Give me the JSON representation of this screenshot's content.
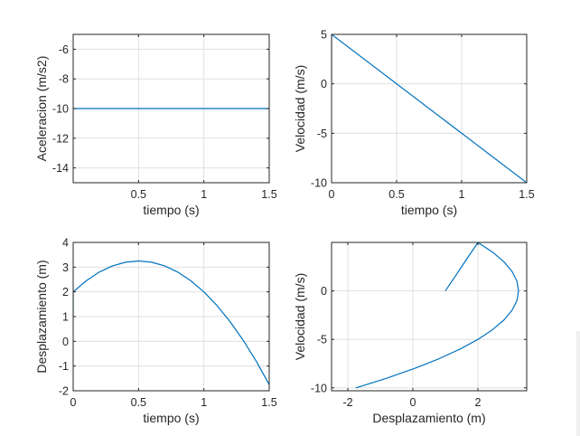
{
  "chart_data": [
    {
      "type": "line",
      "xlabel": "tiempo (s)",
      "ylabel": "Aceleracion (m/s2)",
      "xlim": [
        0,
        1.5
      ],
      "ylim": [
        -15,
        -5
      ],
      "xticks": [
        0.5,
        1,
        1.5
      ],
      "xtick_labels": [
        "0.5",
        "1",
        "1.5"
      ],
      "yticks": [
        -6,
        -8,
        -10,
        -12,
        -14
      ],
      "ytick_labels": [
        "-6",
        "-8",
        "-10",
        "-12",
        "-14"
      ],
      "grid": true,
      "series": [
        {
          "x": [
            0,
            1.5
          ],
          "y": [
            -10,
            -10
          ]
        }
      ]
    },
    {
      "type": "line",
      "xlabel": "tiempo (s)",
      "ylabel": "Velocidad (m/s)",
      "xlim": [
        0,
        1.5
      ],
      "ylim": [
        -10,
        5
      ],
      "xticks": [
        0,
        0.5,
        1,
        1.5
      ],
      "xtick_labels": [
        "0",
        "0.5",
        "1",
        "1.5"
      ],
      "yticks": [
        5,
        0,
        -5,
        -10
      ],
      "ytick_labels": [
        "5",
        "0",
        "-5",
        "-10"
      ],
      "grid": true,
      "series": [
        {
          "x": [
            0,
            0,
            1.5
          ],
          "y": [
            0,
            5,
            -10
          ]
        }
      ]
    },
    {
      "type": "line",
      "xlabel": "tiempo (s)",
      "ylabel": "Desplazamiento (m)",
      "xlim": [
        0,
        1.5
      ],
      "ylim": [
        -2,
        4
      ],
      "xticks": [
        0,
        0.5,
        1,
        1.5
      ],
      "xtick_labels": [
        "0",
        "0.5",
        "1",
        "1.5"
      ],
      "yticks": [
        4,
        3,
        2,
        1,
        0,
        -1,
        -2
      ],
      "ytick_labels": [
        "4",
        "3",
        "2",
        "1",
        "0",
        "-1",
        "-2"
      ],
      "grid": true,
      "series": [
        {
          "x": [
            0,
            0
          ],
          "y": [
            1,
            2
          ]
        },
        {
          "x": [
            0,
            0.1,
            0.2,
            0.3,
            0.4,
            0.5,
            0.6,
            0.7,
            0.8,
            0.9,
            1.0,
            1.1,
            1.2,
            1.3,
            1.4,
            1.5
          ],
          "y": [
            2,
            2.45,
            2.8,
            3.05,
            3.2,
            3.25,
            3.2,
            3.05,
            2.8,
            2.45,
            2,
            1.45,
            0.8,
            0.05,
            -0.8,
            -1.75
          ]
        }
      ]
    },
    {
      "type": "line",
      "xlabel": "Desplazamiento (m)",
      "ylabel": "Velocidad (m/s)",
      "xlim": [
        -2.5,
        3.5
      ],
      "ylim": [
        -10.3,
        5
      ],
      "xticks": [
        -2,
        0,
        2
      ],
      "xtick_labels": [
        "-2",
        "0",
        "2"
      ],
      "yticks": [
        0,
        -5,
        -10
      ],
      "ytick_labels": [
        "0",
        "-5",
        "-10"
      ],
      "grid": true,
      "series": [
        {
          "x": [
            1,
            2
          ],
          "y": [
            0,
            5
          ]
        },
        {
          "x": [
            2,
            2.45,
            2.8,
            3.05,
            3.2,
            3.25,
            3.2,
            3.05,
            2.8,
            2.45,
            2,
            1.45,
            0.8,
            0.05,
            -0.8,
            -1.75
          ],
          "y": [
            5,
            4,
            3,
            2,
            1,
            0,
            -1,
            -2,
            -3,
            -4,
            -5,
            -6,
            -7,
            -8,
            -9,
            -10
          ]
        }
      ]
    }
  ],
  "colors": {
    "line": "#0072bd",
    "axes": "#262626",
    "grid": "#dfdfdf",
    "background": "#ffffff"
  }
}
